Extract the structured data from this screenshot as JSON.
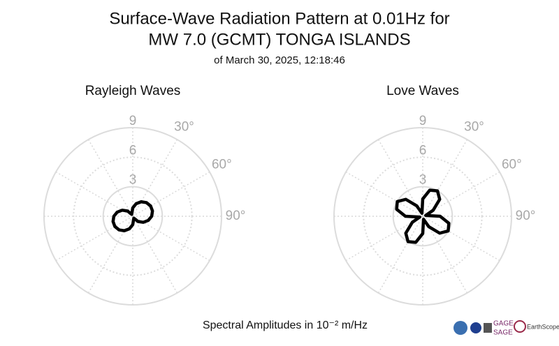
{
  "header": {
    "title": [
      "Surface-Wave Radiation Pattern at 0.01Hz for",
      "MW 7.0 (GCMT) TONGA ISLANDS"
    ],
    "subtitle": "of March 30, 2025, 12:18:46"
  },
  "chart_data": [
    {
      "type": "polar",
      "title": "Rayleigh Waves",
      "color": "#000000",
      "theta": [
        0,
        15,
        30,
        45,
        60,
        75,
        90,
        105,
        120,
        135,
        150,
        165,
        180,
        195,
        210,
        225,
        240,
        255,
        270,
        285,
        300,
        315,
        330,
        345
      ],
      "values": [
        0.85,
        1.32,
        1.7,
        1.96,
        2.09,
        2.07,
        1.92,
        1.63,
        1.23,
        0.75,
        0.22,
        0.33,
        0.85,
        1.32,
        1.7,
        1.96,
        2.09,
        2.07,
        1.92,
        1.63,
        1.23,
        0.75,
        0.22,
        0.33
      ],
      "rlim": [
        0,
        9
      ],
      "rticks": [
        3,
        6,
        9
      ],
      "thetaticks": [
        {
          "value": 30,
          "label": "30°"
        },
        {
          "value": 60,
          "label": "60°"
        },
        {
          "value": 90,
          "label": "90°"
        }
      ],
      "theta_grid": [
        0,
        30,
        60,
        90,
        120,
        150,
        180,
        210,
        240,
        270,
        300,
        330
      ]
    },
    {
      "type": "polar",
      "title": "Love Waves",
      "color": "#000000",
      "theta": [
        0,
        15,
        30,
        45,
        60,
        75,
        90,
        105,
        120,
        135,
        150,
        165,
        180,
        195,
        210,
        225,
        240,
        255,
        270,
        285,
        300,
        315,
        330,
        345
      ],
      "values": [
        1.76,
        2.74,
        2.98,
        2.43,
        1.22,
        0.31,
        1.76,
        2.74,
        2.98,
        2.43,
        1.22,
        0.31,
        1.76,
        2.74,
        2.98,
        2.43,
        1.22,
        0.31,
        1.76,
        2.74,
        2.98,
        2.43,
        1.22,
        0.31
      ],
      "rlim": [
        0,
        9
      ],
      "rticks": [
        3,
        6,
        9
      ],
      "thetaticks": [
        {
          "value": 30,
          "label": "30°"
        },
        {
          "value": 60,
          "label": "60°"
        },
        {
          "value": 90,
          "label": "90°"
        }
      ],
      "theta_grid": [
        0,
        30,
        60,
        90,
        120,
        150,
        180,
        210,
        240,
        270,
        300,
        330
      ]
    }
  ],
  "footer": {
    "axis_label": "Spectral Amplitudes in 10⁻² m/Hz",
    "logos": [
      "GAGE",
      "SAGE",
      "EarthScope"
    ]
  }
}
